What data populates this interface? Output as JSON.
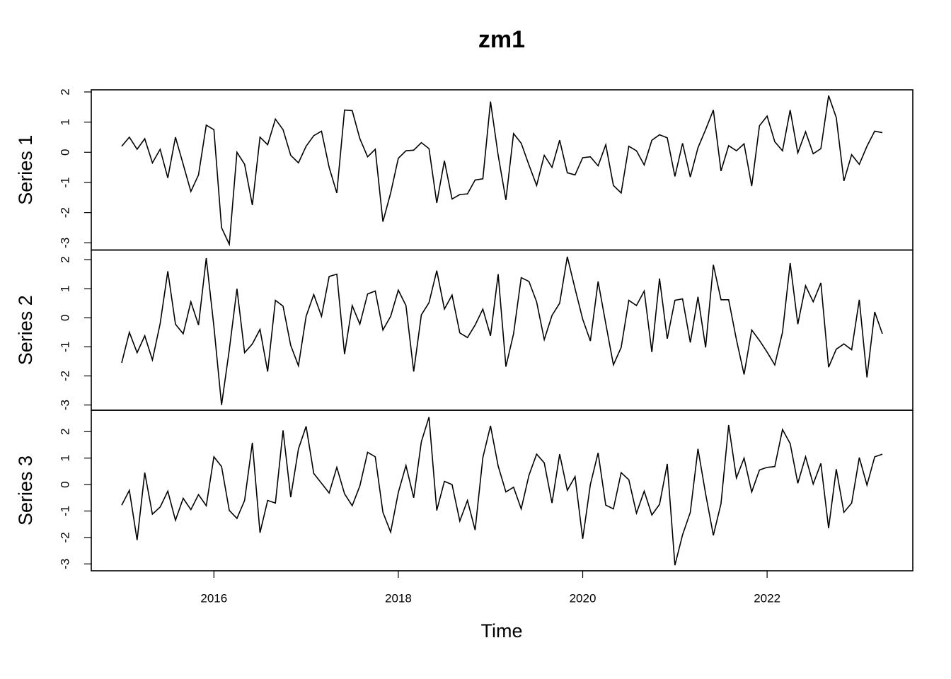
{
  "chart_data": {
    "type": "line",
    "title": "zm1",
    "x_label": "Time",
    "x": [
      2015,
      2015.083,
      2015.167,
      2015.25,
      2015.333,
      2015.417,
      2015.5,
      2015.583,
      2015.667,
      2015.75,
      2015.833,
      2015.917,
      2016,
      2016.083,
      2016.167,
      2016.25,
      2016.333,
      2016.417,
      2016.5,
      2016.583,
      2016.667,
      2016.75,
      2016.833,
      2016.917,
      2017,
      2017.083,
      2017.167,
      2017.25,
      2017.333,
      2017.417,
      2017.5,
      2017.583,
      2017.667,
      2017.75,
      2017.833,
      2017.917,
      2018,
      2018.083,
      2018.167,
      2018.25,
      2018.333,
      2018.417,
      2018.5,
      2018.583,
      2018.667,
      2018.75,
      2018.833,
      2018.917,
      2019,
      2019.083,
      2019.167,
      2019.25,
      2019.333,
      2019.417,
      2019.5,
      2019.583,
      2019.667,
      2019.75,
      2019.833,
      2019.917,
      2020,
      2020.083,
      2020.167,
      2020.25,
      2020.333,
      2020.417,
      2020.5,
      2020.583,
      2020.667,
      2020.75,
      2020.833,
      2020.917,
      2021,
      2021.083,
      2021.167,
      2021.25,
      2021.333,
      2021.417,
      2021.5,
      2021.583,
      2021.667,
      2021.75,
      2021.833,
      2021.917,
      2022,
      2022.083,
      2022.167,
      2022.25,
      2022.333,
      2022.417,
      2022.5,
      2022.583,
      2022.667,
      2022.75,
      2022.833,
      2022.917,
      2023,
      2023.083,
      2023.167,
      2023.25
    ],
    "xlim": [
      2014.67,
      2023.58
    ],
    "xticks": [
      2016,
      2018,
      2020,
      2022
    ],
    "series": [
      {
        "name": "Series 1",
        "color": "#000000",
        "ylim": [
          -3.24,
          2.07
        ],
        "yticks": [
          -3,
          -2,
          -1,
          0,
          1,
          2
        ],
        "values": [
          0.2,
          0.5,
          0.1,
          0.45,
          -0.35,
          0.1,
          -0.85,
          0.5,
          -0.4,
          -1.3,
          -0.75,
          0.9,
          0.75,
          -2.5,
          -3.05,
          0,
          -0.4,
          -1.75,
          0.5,
          0.25,
          1.1,
          0.75,
          -0.1,
          -0.35,
          0.2,
          0.55,
          0.7,
          -0.5,
          -1.35,
          1.4,
          1.38,
          0.45,
          -0.15,
          0.1,
          -2.3,
          -1.35,
          -0.2,
          0.05,
          0.07,
          0.32,
          0.12,
          -1.68,
          -0.28,
          -1.55,
          -1.4,
          -1.38,
          -0.92,
          -0.88,
          1.68,
          -0.1,
          -1.58,
          0.62,
          0.3,
          -0.42,
          -1.1,
          -0.1,
          -0.5,
          0.4,
          -0.68,
          -0.75,
          -0.18,
          -0.15,
          -0.45,
          0.25,
          -1.1,
          -1.35,
          0.2,
          0.05,
          -0.42,
          0.4,
          0.58,
          0.48,
          -0.8,
          0.3,
          -0.82,
          0.15,
          0.75,
          1.4,
          -0.62,
          0.22,
          0.05,
          0.28,
          -1.12,
          0.88,
          1.2,
          0.35,
          0.05,
          1.4,
          -0.02,
          0.68,
          -0.05,
          0.12,
          1.88,
          1.15,
          -0.95,
          -0.08,
          -0.4,
          0.2,
          0.7,
          0.65
        ]
      },
      {
        "name": "Series 2",
        "color": "#000000",
        "ylim": [
          -3.18,
          2.33
        ],
        "yticks": [
          -3,
          -2,
          -1,
          0,
          1,
          2
        ],
        "values": [
          -1.55,
          -0.5,
          -1.2,
          -0.62,
          -1.45,
          -0.2,
          1.6,
          -0.22,
          -0.55,
          0.55,
          -0.25,
          2.05,
          -0.3,
          -3.0,
          -1.1,
          1.0,
          -1.2,
          -0.9,
          -0.4,
          -1.85,
          0.6,
          0.4,
          -0.95,
          -1.65,
          0.05,
          0.8,
          0.05,
          1.42,
          1.5,
          -1.25,
          0.42,
          -0.22,
          0.82,
          0.92,
          -0.42,
          0.05,
          0.95,
          0.42,
          -1.85,
          0.1,
          0.52,
          1.62,
          0.3,
          0.78,
          -0.52,
          -0.68,
          -0.25,
          0.3,
          -0.62,
          1.5,
          -1.68,
          -0.55,
          1.38,
          1.25,
          0.55,
          -0.75,
          0.08,
          0.5,
          2.1,
          1.0,
          -0.05,
          -0.8,
          1.25,
          -0.2,
          -1.62,
          -1.02,
          0.6,
          0.42,
          0.92,
          -1.18,
          1.35,
          -0.72,
          0.6,
          0.65,
          -0.85,
          0.72,
          -1.02,
          1.82,
          0.62,
          0.62,
          -0.75,
          -1.95,
          -0.42,
          -0.78,
          -1.18,
          -1.62,
          -0.5,
          1.88,
          -0.22,
          1.1,
          0.55,
          1.2,
          -1.7,
          -1.08,
          -0.9,
          -1.1,
          0.62,
          -2.05,
          0.2,
          -0.55
        ]
      },
      {
        "name": "Series 3",
        "color": "#000000",
        "ylim": [
          -3.26,
          2.81
        ],
        "yticks": [
          -3,
          -2,
          -1,
          0,
          1,
          2
        ],
        "values": [
          -0.78,
          -0.22,
          -2.1,
          0.45,
          -1.12,
          -0.85,
          -0.25,
          -1.35,
          -0.52,
          -0.95,
          -0.38,
          -0.8,
          1.05,
          0.68,
          -0.98,
          -1.28,
          -0.6,
          1.58,
          -1.82,
          -0.6,
          -0.7,
          2.05,
          -0.48,
          1.35,
          2.2,
          0.42,
          0.05,
          -0.32,
          0.65,
          -0.35,
          -0.8,
          -0.05,
          1.22,
          1.05,
          -1.05,
          -1.8,
          -0.3,
          0.72,
          -0.5,
          1.62,
          2.55,
          -0.98,
          0.12,
          0.0,
          -1.38,
          -0.6,
          -1.72,
          1.02,
          2.22,
          0.7,
          -0.28,
          -0.1,
          -0.92,
          0.35,
          1.15,
          0.82,
          -0.7,
          1.15,
          -0.22,
          0.3,
          -2.05,
          0.0,
          1.2,
          -0.78,
          -0.92,
          0.45,
          0.18,
          -1.08,
          -0.25,
          -1.15,
          -0.75,
          0.78,
          -3.05,
          -1.9,
          -1.05,
          1.35,
          -0.35,
          -1.92,
          -0.72,
          2.25,
          0.25,
          1.0,
          -0.28,
          0.55,
          0.65,
          0.68,
          2.08,
          1.55,
          0.05,
          1.05,
          0.02,
          0.8,
          -1.65,
          0.58,
          -1.05,
          -0.7,
          1.02,
          -0.02,
          1.05,
          1.15
        ]
      }
    ]
  }
}
